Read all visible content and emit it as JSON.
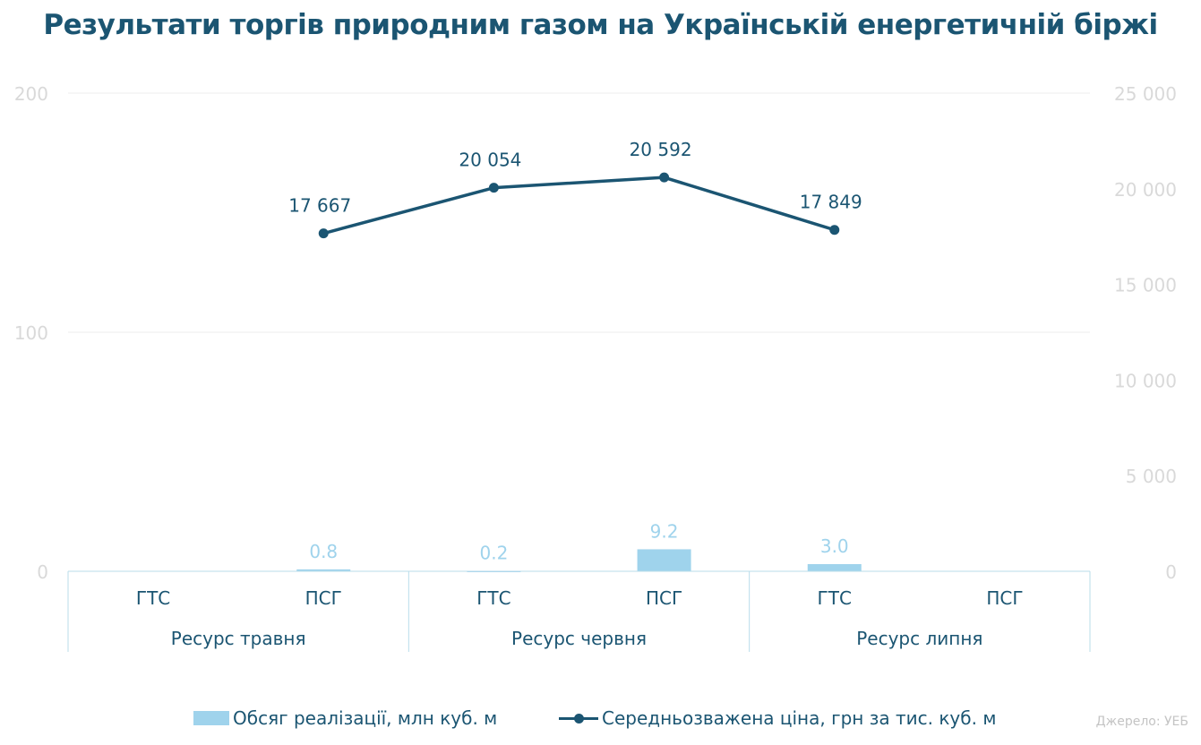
{
  "title": "Результати торгів природним газом на Українській енергетичній біржі",
  "source": "Джерело: УЕБ",
  "colors": {
    "bar": "#9fd3ec",
    "line": "#1b5572",
    "axis_text": "#d9d9d9",
    "category_text": "#1b5572"
  },
  "chart_data": {
    "type": "bar+line",
    "groups": [
      {
        "label": "Ресурс травня",
        "categories": [
          "ГТС",
          "ПСГ"
        ]
      },
      {
        "label": "Ресурс червня",
        "categories": [
          "ГТС",
          "ПСГ"
        ]
      },
      {
        "label": "Ресурс липня",
        "categories": [
          "ГТС",
          "ПСГ"
        ]
      }
    ],
    "series": [
      {
        "name": "Обсяг реалізації, млн куб. м",
        "kind": "bar",
        "axis": "left",
        "values": [
          null,
          0.8,
          0.2,
          9.2,
          3.0,
          null
        ],
        "labels": [
          null,
          "0.8",
          "0.2",
          "9.2",
          "3.0",
          null
        ]
      },
      {
        "name": "Середньозважена ціна, грн за тис. куб. м",
        "kind": "line",
        "axis": "right",
        "values": [
          null,
          17667,
          20054,
          20592,
          17849,
          null
        ],
        "labels": [
          null,
          "17 667",
          "20 054",
          "20 592",
          "17 849",
          null
        ]
      }
    ],
    "left_axis": {
      "ylim": [
        0,
        200
      ],
      "ticks": [
        0,
        100,
        200
      ],
      "tick_labels": [
        "0",
        "100",
        "200"
      ]
    },
    "right_axis": {
      "ylim": [
        0,
        25000
      ],
      "ticks": [
        0,
        5000,
        10000,
        15000,
        20000,
        25000
      ],
      "tick_labels": [
        "0",
        "5 000",
        "10 000",
        "15 000",
        "20 000",
        "25 000"
      ]
    },
    "grid": true,
    "legend_position": "bottom"
  }
}
